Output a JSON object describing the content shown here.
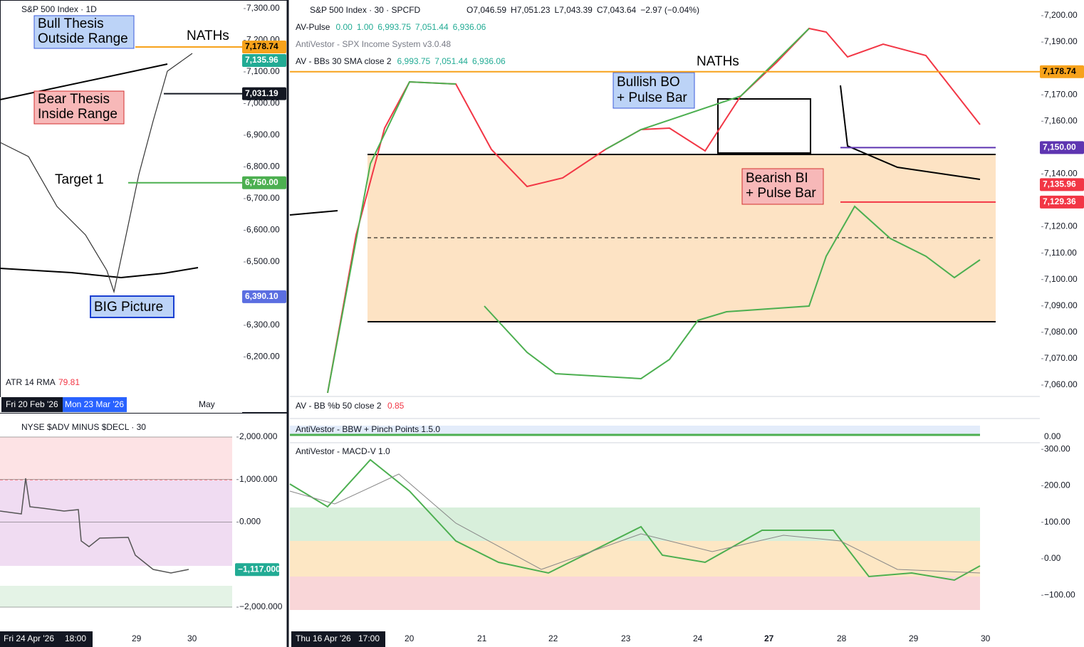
{
  "left_chart": {
    "title": "S&P 500 Index · 1D",
    "yticks": [
      {
        "value": 7300,
        "label": "7,300.00"
      },
      {
        "value": 7200,
        "label": "7,200.00"
      },
      {
        "value": 7100,
        "label": "7,100.00"
      },
      {
        "value": 7000,
        "label": "7,000.00"
      },
      {
        "value": 6900,
        "label": "6,900.00"
      },
      {
        "value": 6800,
        "label": "6,800.00"
      },
      {
        "value": 6700,
        "label": "6,700.00"
      },
      {
        "value": 6600,
        "label": "6,600.00"
      },
      {
        "value": 6500,
        "label": "6,500.00"
      },
      {
        "value": 6300,
        "label": "6,300.00"
      },
      {
        "value": 6200,
        "label": "6,200.00"
      }
    ],
    "price_tags": [
      {
        "value": 7178.74,
        "label": "7,178.74",
        "color": "#f7a21b"
      },
      {
        "value": 7135.96,
        "label": "7,135.96",
        "color": "#22ab94"
      },
      {
        "value": 7031.19,
        "label": "7,031.19",
        "color": "#131722"
      },
      {
        "value": 6750,
        "label": "6,750.00",
        "color": "#4caf50"
      },
      {
        "value": 6390.1,
        "label": "6,390.10",
        "color": "#5b6ee1"
      }
    ],
    "annotations": [
      "Bull Thesis",
      "Outside Range",
      "Bear Thesis",
      "Inside Range",
      "NATHs",
      "Target 1",
      "BIG Picture"
    ],
    "indicator": {
      "name": "ATR 14 RMA",
      "value": "79.81"
    },
    "x_labels": [
      "Fri 20 Feb '26",
      "Mon 23 Mar '26",
      "May"
    ]
  },
  "breadth_chart": {
    "title": "NYSE $ADV MINUS $DECL · 30",
    "yticks": [
      {
        "value": 2000,
        "label": "2,000.000"
      },
      {
        "value": 1000,
        "label": "1,000.000"
      },
      {
        "value": 0,
        "label": "0.000"
      },
      {
        "value": -2000,
        "label": "−2,000.000"
      }
    ],
    "price_tags": [
      {
        "value": -1117,
        "label": "−1,117.000",
        "color": "#22ab94"
      }
    ],
    "x_labels": [
      "Fri 24 Apr '26",
      "18:00",
      "29",
      "30"
    ]
  },
  "main_chart": {
    "title": "S&P 500 Index · 30 · SPCFD",
    "ohlc": [
      "O7,046.59",
      "H7,051.23",
      "L7,043.39",
      "C7,043.64",
      "−2.97 (−0.04%)"
    ],
    "indicators": [
      {
        "name": "AV-Pulse",
        "values": [
          "0.00",
          "1.00",
          "6,993.75",
          "7,051.44",
          "6,936.06"
        ]
      },
      {
        "name": "AntiVestor - SPX Income System v3.0.48"
      },
      {
        "name": "AV - BBs 30 SMA close 2",
        "values": [
          "6,993.75",
          "7,051.44",
          "6,936.06"
        ]
      }
    ],
    "yticks": [
      {
        "value": 7200,
        "label": "7,200.00"
      },
      {
        "value": 7190,
        "label": "7,190.00"
      },
      {
        "value": 7170,
        "label": "7,170.00"
      },
      {
        "value": 7160,
        "label": "7,160.00"
      },
      {
        "value": 7140,
        "label": "7,140.00"
      },
      {
        "value": 7120,
        "label": "7,120.00"
      },
      {
        "value": 7110,
        "label": "7,110.00"
      },
      {
        "value": 7100,
        "label": "7,100.00"
      },
      {
        "value": 7090,
        "label": "7,090.00"
      },
      {
        "value": 7080,
        "label": "7,080.00"
      },
      {
        "value": 7070,
        "label": "7,070.00"
      },
      {
        "value": 7060,
        "label": "7,060.00"
      }
    ],
    "price_tags": [
      {
        "value": 7178.74,
        "label": "7,178.74",
        "color": "#f7a21b"
      },
      {
        "value": 7150,
        "label": "7,150.00",
        "color": "#5e35b1"
      },
      {
        "value": 7135.96,
        "label": "7,135.96",
        "color": "#f23645"
      },
      {
        "value": 7129.36,
        "label": "7,129.36",
        "color": "#f23645"
      }
    ],
    "annotations": [
      "NATHs",
      "Bullish BO",
      "+ Pulse Bar",
      "Bearish BI",
      "+ Pulse Bar"
    ],
    "x_labels": [
      "Thu 16 Apr '26",
      "17:00",
      "20",
      "21",
      "22",
      "23",
      "24",
      "27",
      "28",
      "29",
      "30"
    ]
  },
  "sub_panels": {
    "bb_pb": {
      "name": "AV - BB %b 50 close 2",
      "value": "0.85"
    },
    "bbw": {
      "name": "AntiVestor - BBW + Pinch Points 1.5.0",
      "tick": "0.00"
    },
    "macd": {
      "name": "AntiVestor - MACD-V 1.0",
      "yticks": [
        {
          "value": 300,
          "label": "300.00"
        },
        {
          "value": 200,
          "label": "200.00"
        },
        {
          "value": 100,
          "label": "100.00"
        },
        {
          "value": 0,
          "label": "0.00"
        },
        {
          "value": -100,
          "label": "−100.00"
        }
      ]
    }
  }
}
